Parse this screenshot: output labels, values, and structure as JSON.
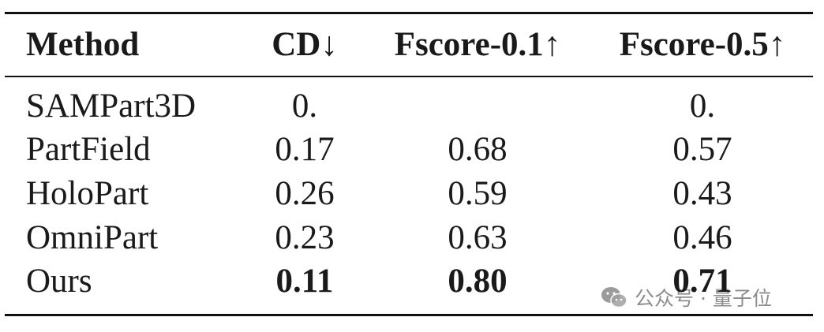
{
  "table": {
    "header": [
      "Method",
      "CD↓",
      "Fscore-0.1↑",
      "Fscore-0.5↑"
    ],
    "rows": [
      [
        "SAMPart3D",
        "0.",
        null,
        "0."
      ],
      [
        "PartField",
        "0.17",
        "0.68",
        "0.57"
      ],
      [
        "HoloPart",
        "0.26",
        "0.59",
        "0.43"
      ],
      [
        "OmniPart",
        "0.23",
        "0.63",
        "0.46"
      ],
      [
        "Ours",
        "0.11",
        "0.80",
        "0.71"
      ]
    ],
    "bold_row": 4
  },
  "watermark": {
    "text": "公众号 · 量子位"
  }
}
